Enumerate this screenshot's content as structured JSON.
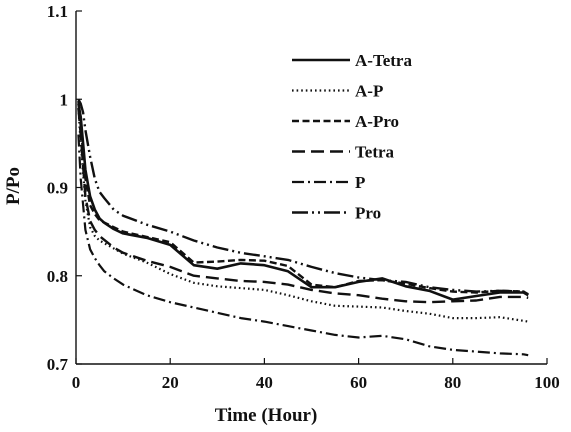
{
  "chart_data": {
    "type": "line",
    "xlabel": "Time (Hour)",
    "ylabel": "P/Po",
    "xlim": [
      0,
      100
    ],
    "ylim": [
      0.7,
      1.1
    ],
    "xticks": [
      0,
      20,
      40,
      60,
      80,
      100
    ],
    "yticks": [
      0.7,
      0.8,
      0.9,
      1,
      1.1
    ],
    "xtick_labels": [
      "0",
      "20",
      "40",
      "60",
      "80",
      "100"
    ],
    "ytick_labels": [
      "0.7",
      "0.8",
      "0.9",
      "1",
      "1.1"
    ],
    "grid": false,
    "legend_position": "top-right",
    "series": [
      {
        "name": "A-Tetra",
        "style": "solid",
        "x": [
          0.5,
          1,
          1.5,
          2,
          3,
          4,
          5,
          6,
          8,
          10,
          15,
          20,
          25,
          30,
          35,
          40,
          45,
          50,
          55,
          60,
          65,
          70,
          75,
          80,
          85,
          90,
          95,
          96
        ],
        "y": [
          0.995,
          0.98,
          0.95,
          0.92,
          0.89,
          0.875,
          0.865,
          0.86,
          0.853,
          0.848,
          0.843,
          0.835,
          0.812,
          0.808,
          0.814,
          0.812,
          0.805,
          0.787,
          0.787,
          0.793,
          0.797,
          0.788,
          0.783,
          0.773,
          0.777,
          0.781,
          0.781,
          0.778
        ]
      },
      {
        "name": "A-P",
        "style": "dotted",
        "x": [
          0.5,
          1,
          2,
          3,
          4,
          5,
          8,
          10,
          15,
          20,
          25,
          30,
          35,
          40,
          45,
          50,
          55,
          60,
          65,
          70,
          75,
          80,
          85,
          90,
          95,
          96
        ],
        "y": [
          0.99,
          0.95,
          0.885,
          0.855,
          0.845,
          0.84,
          0.831,
          0.825,
          0.815,
          0.802,
          0.792,
          0.788,
          0.786,
          0.784,
          0.778,
          0.771,
          0.766,
          0.765,
          0.764,
          0.76,
          0.757,
          0.752,
          0.752,
          0.753,
          0.749,
          0.748
        ]
      },
      {
        "name": "A-Pro",
        "style": "short-dash",
        "x": [
          0.5,
          1,
          2,
          3,
          4,
          5,
          8,
          10,
          15,
          20,
          25,
          30,
          35,
          40,
          45,
          50,
          55,
          60,
          65,
          70,
          75,
          80,
          85,
          90,
          95,
          96
        ],
        "y": [
          0.998,
          0.97,
          0.91,
          0.88,
          0.87,
          0.863,
          0.855,
          0.85,
          0.844,
          0.838,
          0.815,
          0.816,
          0.818,
          0.817,
          0.811,
          0.79,
          0.787,
          0.794,
          0.795,
          0.791,
          0.786,
          0.782,
          0.781,
          0.783,
          0.782,
          0.779
        ]
      },
      {
        "name": "Tetra",
        "style": "long-dash",
        "x": [
          0.5,
          1,
          2,
          3,
          4,
          5,
          8,
          10,
          15,
          20,
          25,
          30,
          35,
          40,
          45,
          50,
          55,
          60,
          65,
          70,
          75,
          80,
          85,
          90,
          95,
          96
        ],
        "y": [
          0.99,
          0.96,
          0.89,
          0.862,
          0.852,
          0.845,
          0.832,
          0.826,
          0.817,
          0.81,
          0.8,
          0.797,
          0.794,
          0.793,
          0.79,
          0.784,
          0.78,
          0.778,
          0.774,
          0.771,
          0.77,
          0.771,
          0.772,
          0.776,
          0.776,
          0.775
        ]
      },
      {
        "name": "P",
        "style": "dash-dot",
        "x": [
          0.5,
          1,
          2,
          3,
          4,
          5,
          6,
          8,
          10,
          15,
          20,
          25,
          30,
          35,
          40,
          45,
          50,
          55,
          60,
          65,
          70,
          75,
          80,
          85,
          90,
          95,
          96
        ],
        "y": [
          0.96,
          0.91,
          0.852,
          0.83,
          0.82,
          0.812,
          0.805,
          0.797,
          0.79,
          0.778,
          0.77,
          0.764,
          0.758,
          0.752,
          0.748,
          0.743,
          0.738,
          0.733,
          0.73,
          0.732,
          0.728,
          0.72,
          0.716,
          0.714,
          0.712,
          0.711,
          0.71
        ]
      },
      {
        "name": "Pro",
        "style": "dash-dot-dot",
        "x": [
          0.5,
          1,
          1.5,
          2,
          3,
          4,
          5,
          6,
          8,
          10,
          15,
          20,
          25,
          30,
          35,
          40,
          45,
          50,
          55,
          60,
          65,
          70,
          75,
          80,
          85,
          90,
          95,
          96
        ],
        "y": [
          1.0,
          0.995,
          0.985,
          0.965,
          0.935,
          0.91,
          0.895,
          0.888,
          0.875,
          0.868,
          0.858,
          0.85,
          0.84,
          0.832,
          0.826,
          0.822,
          0.818,
          0.81,
          0.803,
          0.798,
          0.795,
          0.793,
          0.787,
          0.784,
          0.782,
          0.783,
          0.782,
          0.779
        ]
      }
    ]
  }
}
